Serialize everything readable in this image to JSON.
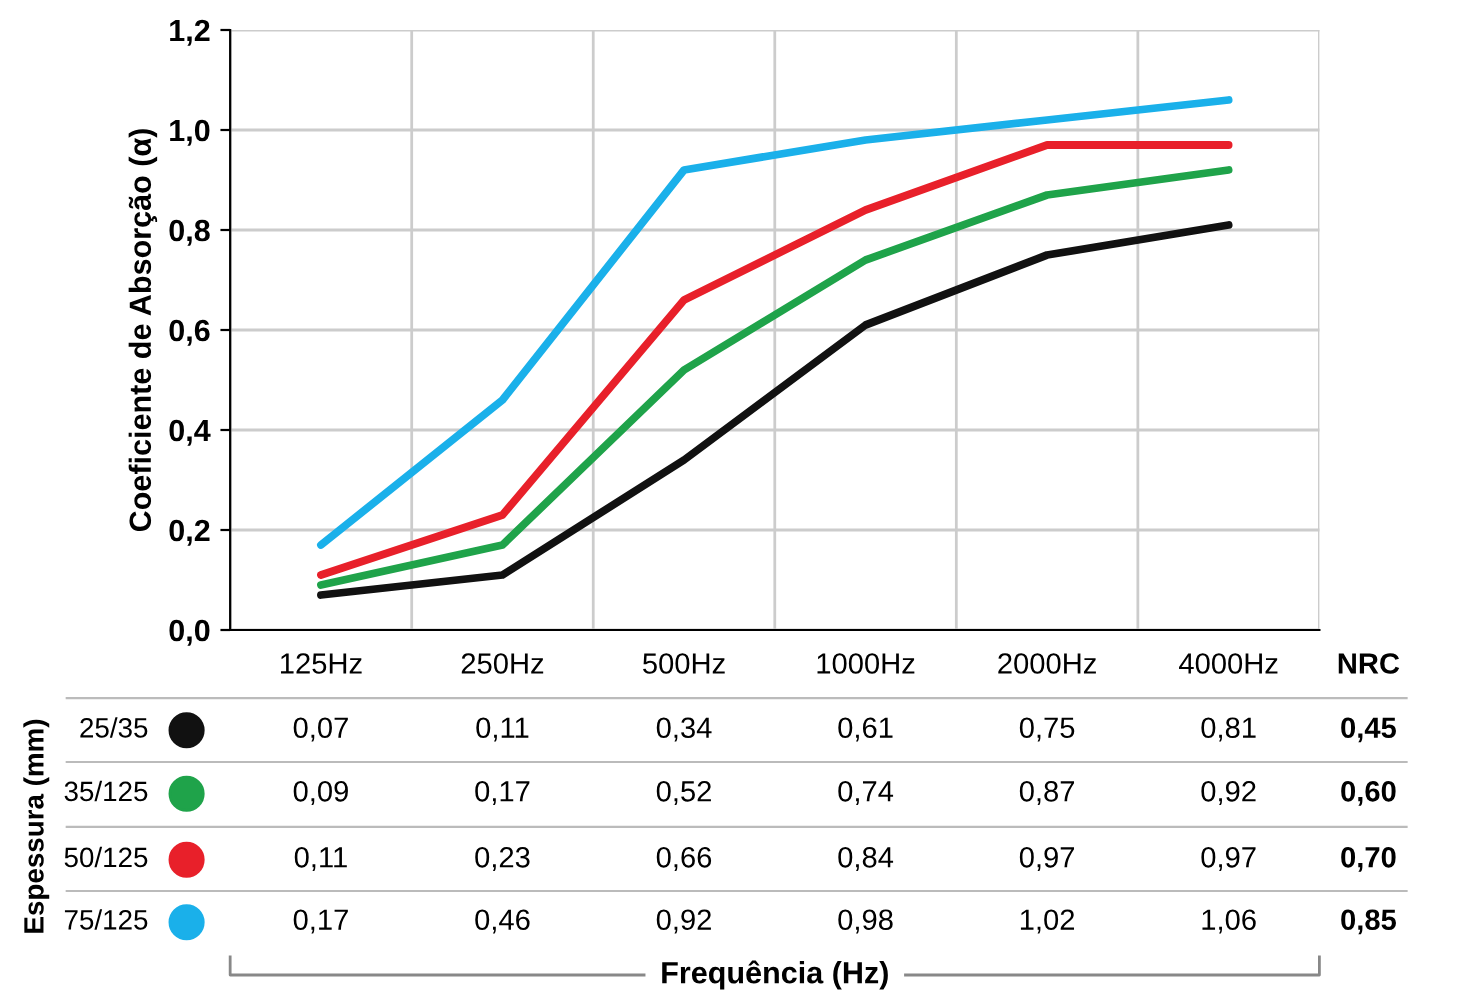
{
  "chart_data": {
    "type": "line",
    "ylabel": "Coeficiente de Absorção (α)",
    "legend_title": "Espessura (mm)",
    "categories": [
      "125Hz",
      "250Hz",
      "500Hz",
      "1000Hz",
      "2000Hz",
      "4000Hz"
    ],
    "series": [
      {
        "name": "25/35",
        "color": "#111111",
        "values": [
          0.07,
          0.11,
          0.34,
          0.61,
          0.75,
          0.81
        ],
        "value_labels": [
          "0,07",
          "0,11",
          "0,34",
          "0,61",
          "0,75",
          "0,81"
        ]
      },
      {
        "name": "35/125",
        "color": "#1fa34a",
        "values": [
          0.09,
          0.17,
          0.52,
          0.74,
          0.87,
          0.92
        ],
        "value_labels": [
          "0,09",
          "0,17",
          "0,52",
          "0,74",
          "0,87",
          "0,92"
        ]
      },
      {
        "name": "50/125",
        "color": "#e8202a",
        "values": [
          0.11,
          0.23,
          0.66,
          0.84,
          0.97,
          0.97
        ],
        "value_labels": [
          "0,11",
          "0,23",
          "0,66",
          "0,84",
          "0,97",
          "0,97"
        ]
      },
      {
        "name": "75/125",
        "color": "#1ab0ea",
        "values": [
          0.17,
          0.46,
          0.92,
          0.98,
          1.02,
          1.06
        ],
        "value_labels": [
          "0,17",
          "0,46",
          "0,92",
          "0,98",
          "1,02",
          "1,06"
        ]
      }
    ],
    "annotations": [
      "NRC",
      "0,45",
      "0,60",
      "0,70",
      "0,85",
      "Frequência (Hz)"
    ],
    "ylim": [
      0,
      1.2
    ],
    "yticks": [
      {
        "value": 0,
        "label": "0,0"
      },
      {
        "value": 0.2,
        "label": "0,2"
      },
      {
        "value": 0.4,
        "label": "0,4"
      },
      {
        "value": 0.6,
        "label": "0,6"
      },
      {
        "value": 0.8,
        "label": "0,8"
      },
      {
        "value": 1.0,
        "label": "1,0"
      },
      {
        "value": 1.2,
        "label": "1,2"
      }
    ],
    "grid": true,
    "legend": "bottom left",
    "marker": "none",
    "line_style": "solid"
  }
}
